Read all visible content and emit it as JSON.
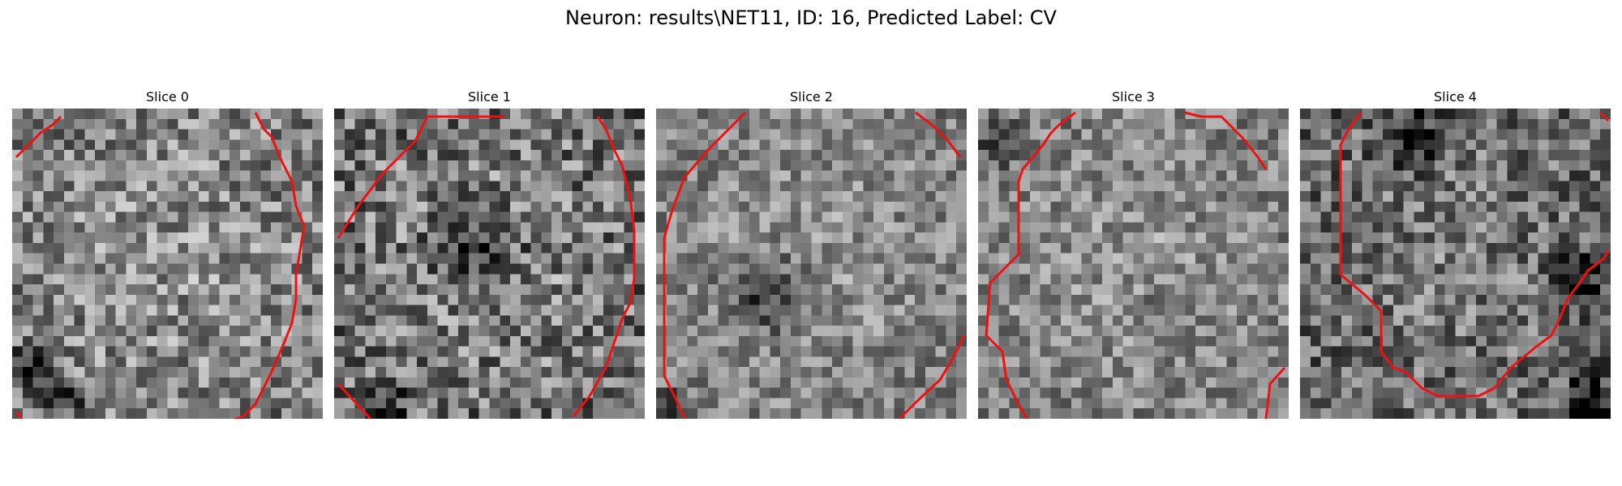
{
  "figure": {
    "title": "Neuron: results\\NET11, ID: 16, Predicted Label: CV"
  },
  "colors": {
    "contour": "#ee1111",
    "background": "#ffffff"
  },
  "panels": [
    {
      "title": "Slice 0"
    },
    {
      "title": "Slice 1"
    },
    {
      "title": "Slice 2"
    },
    {
      "title": "Slice 3"
    },
    {
      "title": "Slice 4"
    }
  ]
}
